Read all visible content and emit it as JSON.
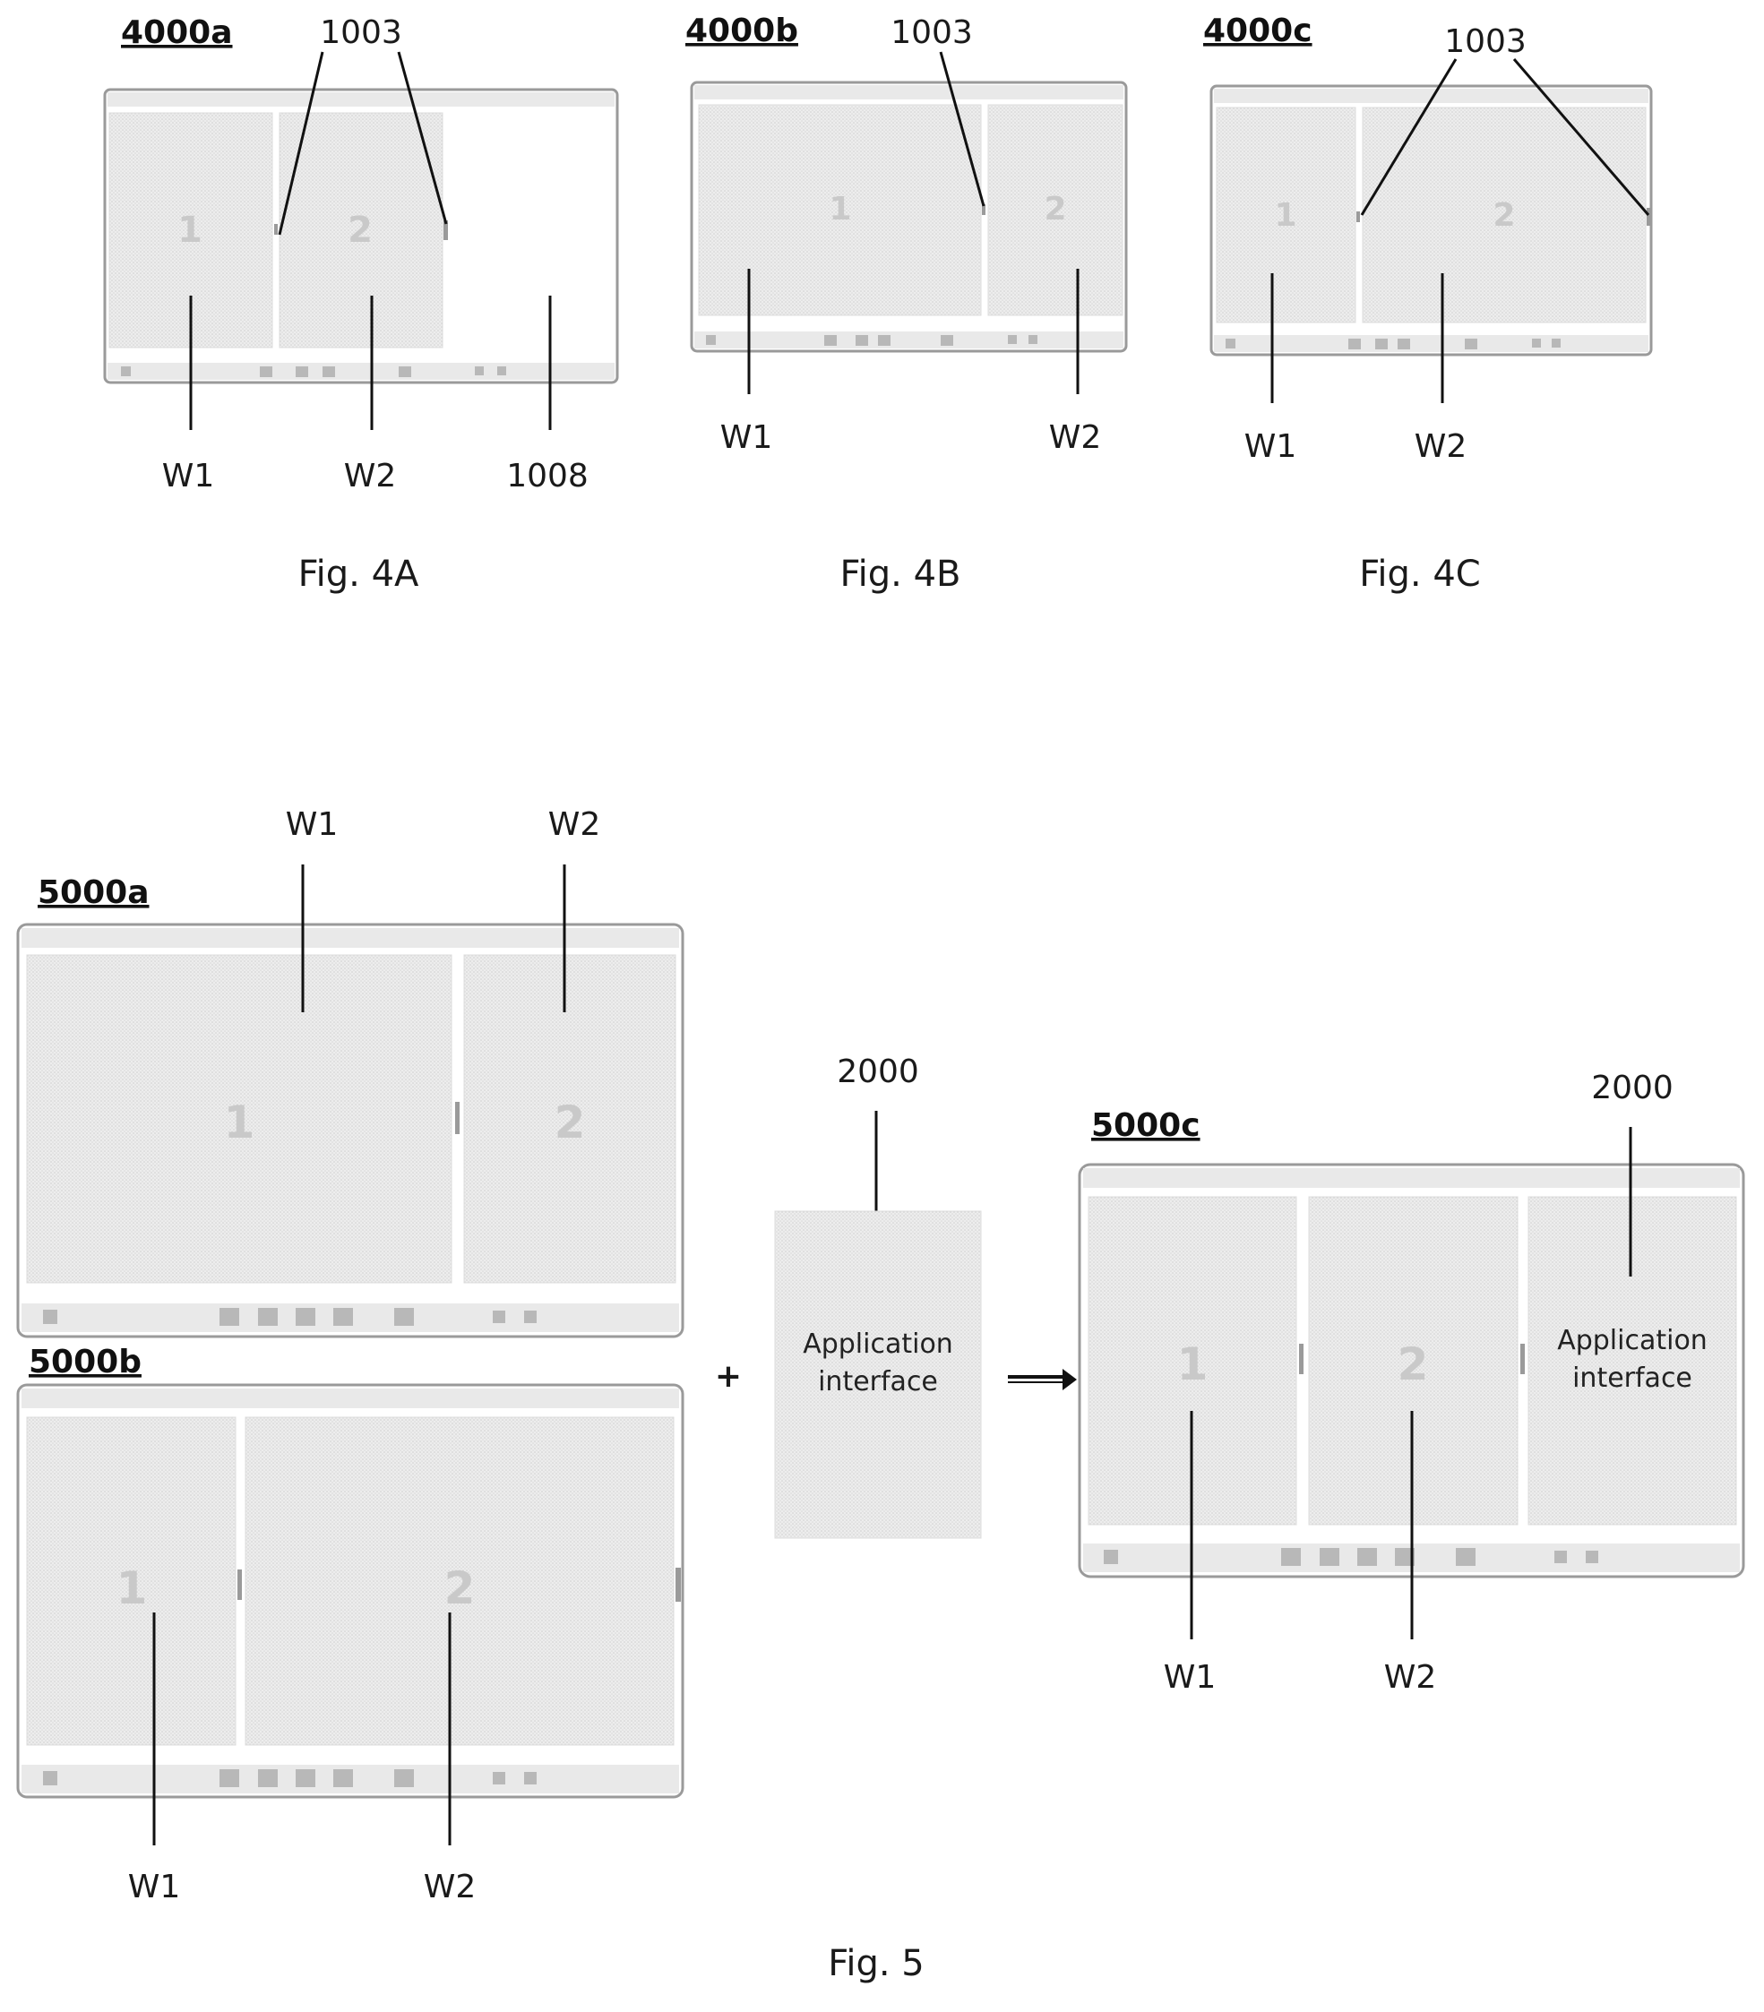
{
  "captions": {
    "fig4a": "Fig. 4A",
    "fig4b": "Fig. 4B",
    "fig4c": "Fig. 4C",
    "fig5": "Fig. 5"
  },
  "labels": {
    "s4000a": "4000a",
    "s4000b": "4000b",
    "s4000c": "4000c",
    "s5000a": "5000a",
    "s5000b": "5000b",
    "s5000c": "5000c",
    "divider_ref": "1003",
    "blank_ref": "1008",
    "app_ref": "2000",
    "w1": "W1",
    "w2": "W2"
  },
  "windows": {
    "one": "1",
    "two": "2"
  },
  "app_interface": {
    "line1": "Application",
    "line2": "interface"
  },
  "operators": {
    "plus": "+",
    "arrow": "→"
  },
  "colors": {
    "pane_fill": "#e6e6e6",
    "frame_stroke": "#9a9a9a",
    "leader": "#111111"
  }
}
